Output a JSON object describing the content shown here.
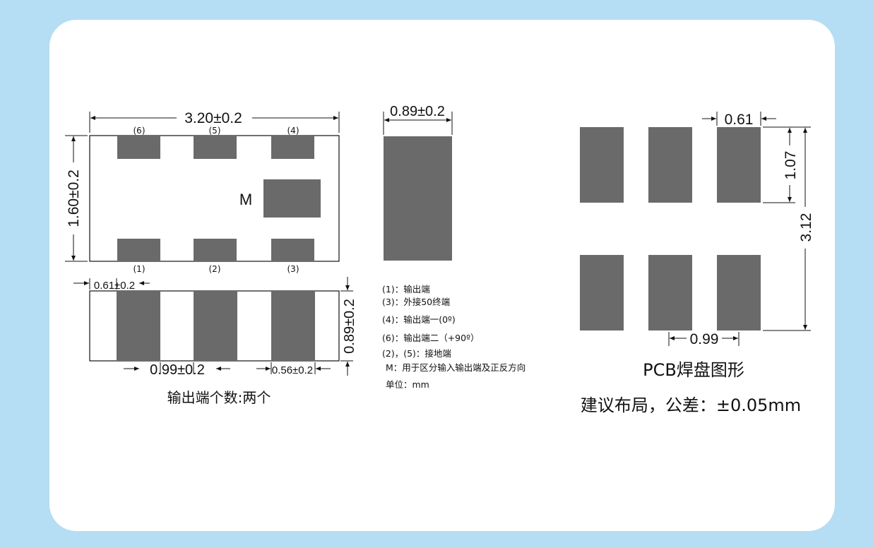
{
  "front_view": {
    "width_dim": "3.20±0.2",
    "height_dim": "1.60±0.2",
    "top_labels": [
      "(6)",
      "(5)",
      "(4)"
    ],
    "bottom_labels": [
      "(1)",
      "(2)",
      "(3)"
    ],
    "marker": "M"
  },
  "side_view": {
    "width_dim": "0.89±0.2"
  },
  "bottom_view": {
    "pad_width_dim": "0.61±0.2",
    "height_dim": "0.89±0.2",
    "pitch_dim": "0.99±0.2",
    "gap_dim": "0.56±0.2",
    "caption": "输出端个数:两个"
  },
  "legend": [
    "(1)：输出端",
    "(3)：外接50终端",
    "(4)：输出端一(0º)",
    "(6)：输出端二（+90º）",
    "(2)，(5)：接地端",
    "M：用于区分输入输出端及正反方向",
    "单位：mm"
  ],
  "pcb": {
    "pad_width_dim": "0.61",
    "pad_height_dim": "1.07",
    "total_height_dim": "3.12",
    "pitch_dim": "0.99",
    "title": "PCB焊盘图形",
    "subtitle": "建议布局，公差：±0.05mm"
  },
  "colors": {
    "background": "#b5ddf4",
    "card": "#ffffff",
    "pad": "#6a6a6a",
    "line": "#111111"
  }
}
